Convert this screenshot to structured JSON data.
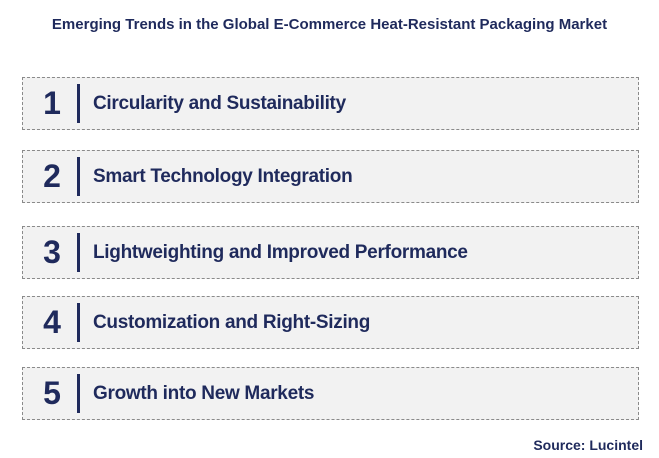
{
  "header": {
    "title": "Emerging Trends in the Global E-Commerce Heat-Resistant Packaging Market"
  },
  "items": [
    {
      "number": 1,
      "label": "Circularity and Sustainability"
    },
    {
      "number": 2,
      "label": "Smart Technology Integration"
    },
    {
      "number": 3,
      "label": "Lightweighting and Improved Performance"
    },
    {
      "number": 4,
      "label": "Customization and Right-Sizing"
    },
    {
      "number": 5,
      "label": "Growth into New Markets"
    }
  ],
  "footer": {
    "source": "Source: Lucintel"
  }
}
